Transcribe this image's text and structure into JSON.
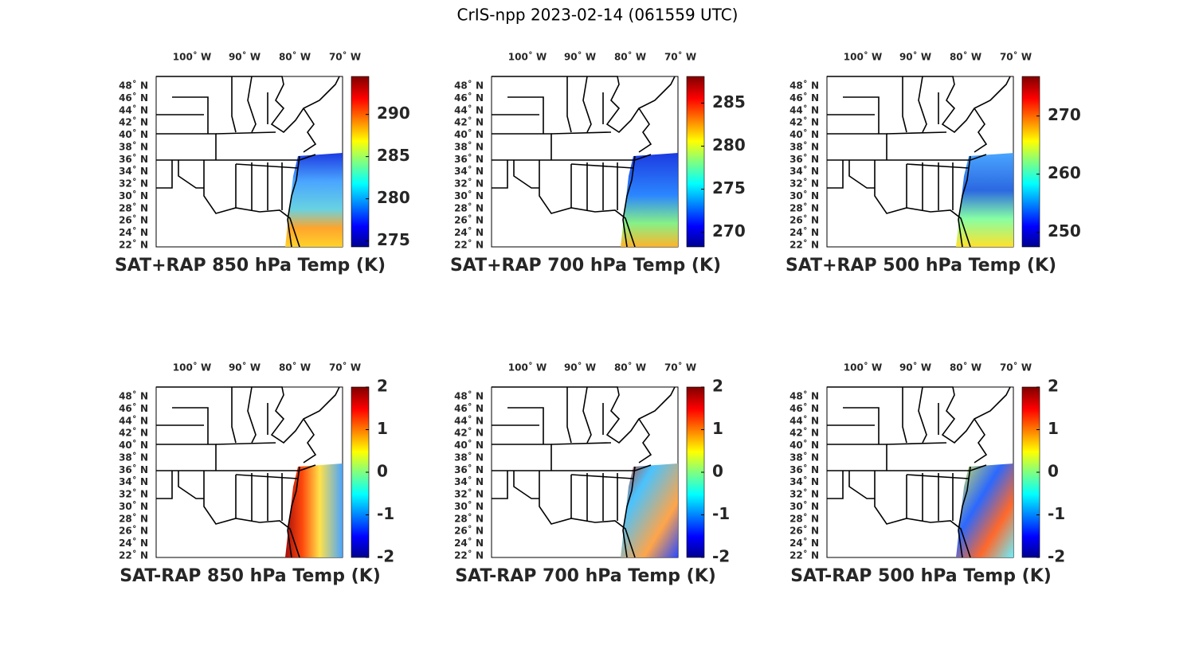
{
  "title": "CrIS-npp 2023-02-14 (061559 UTC)",
  "lon_labels": [
    "100˚ W",
    "90˚ W",
    "80˚ W",
    "70˚ W"
  ],
  "lat_labels": [
    "48˚ N",
    "46˚ N",
    "44˚ N",
    "42˚ N",
    "40˚ N",
    "38˚ N",
    "36˚ N",
    "34˚ N",
    "32˚ N",
    "30˚ N",
    "28˚ N",
    "26˚ N",
    "24˚ N",
    "22˚ N"
  ],
  "panels": [
    {
      "label": "SAT+RAP 850 hPa Temp (K)",
      "colorbar": {
        "lim": [
          274.3,
          294.5
        ],
        "ticks": [
          275,
          280,
          285,
          290
        ]
      }
    },
    {
      "label": "SAT+RAP 700 hPa Temp (K)",
      "colorbar": {
        "lim": [
          268.3,
          288.1
        ],
        "ticks": [
          270,
          275,
          280,
          285
        ]
      }
    },
    {
      "label": "SAT+RAP 500 hPa Temp (K)",
      "colorbar": {
        "lim": [
          247.5,
          276.8
        ],
        "ticks": [
          250,
          260,
          270
        ]
      }
    },
    {
      "label": "SAT-RAP 850 hPa Temp (K)",
      "colorbar": {
        "lim": [
          -2,
          2
        ],
        "ticks": [
          -2,
          -1,
          0,
          1,
          2
        ]
      }
    },
    {
      "label": "SAT-RAP 700 hPa Temp (K)",
      "colorbar": {
        "lim": [
          -2,
          2
        ],
        "ticks": [
          -2,
          -1,
          0,
          1,
          2
        ]
      }
    },
    {
      "label": "SAT-RAP 500 hPa Temp (K)",
      "colorbar": {
        "lim": [
          -2,
          2
        ],
        "ticks": [
          -2,
          -1,
          0,
          1,
          2
        ]
      }
    }
  ]
}
